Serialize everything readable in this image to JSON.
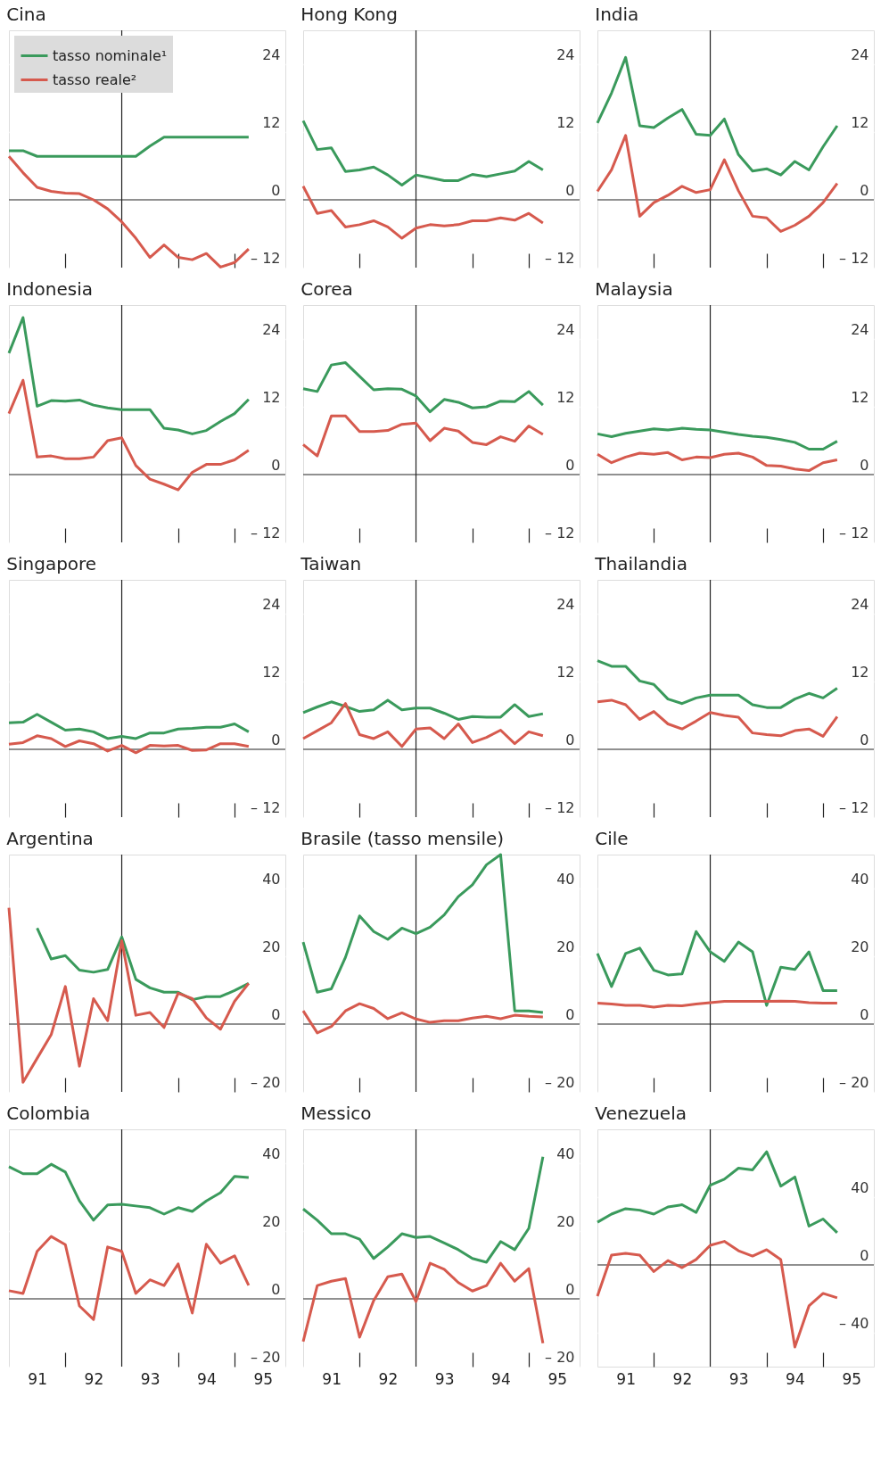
{
  "chart_data": [
    {
      "type": "line",
      "title": "Cina",
      "legend": "top left",
      "grid": "y",
      "tick_labels": "y",
      "x": [
        90.5,
        90.75,
        91,
        91.25,
        91.5,
        91.75,
        92,
        92.25,
        92.5,
        92.75,
        93,
        93.25,
        93.5,
        93.75,
        94,
        94.25,
        94.5,
        94.75
      ],
      "xlim": [
        90.5,
        95.4
      ],
      "xticks": [
        91,
        92,
        93,
        94,
        95,
        {
          "value": 91.5,
          "label": null
        },
        {
          "value": 93.5,
          "label": null
        },
        {
          "value": 94.5,
          "label": null
        }
      ],
      "ylim": [
        -12,
        30
      ],
      "yticks": [
        {
          "value": -12,
          "label": "– 12"
        },
        0,
        12,
        24
      ],
      "ref_lines": [
        {
          "axis": "x",
          "value": 92.5
        },
        {
          "axis": "y",
          "value": 0
        }
      ],
      "series": [
        {
          "name": "tasso nominale¹",
          "color": "#3a9a5c",
          "values": [
            8.7,
            8.7,
            7.7,
            7.7,
            7.7,
            7.7,
            7.7,
            7.7,
            7.7,
            7.7,
            9.5,
            11.1,
            11.1,
            11.1,
            11.1,
            11.1,
            11.1,
            11.1
          ]
        },
        {
          "name": "tasso reale²",
          "color": "#d65a4e",
          "values": [
            7.7,
            4.8,
            2.2,
            1.5,
            1.2,
            1.1,
            0,
            -1.6,
            -3.9,
            -6.8,
            -10.2,
            -8,
            -10.2,
            -10.6,
            -9.5,
            -11.9,
            -11.1,
            -8.7
          ]
        }
      ]
    },
    {
      "type": "line",
      "title": "Hong Kong",
      "grid": "y",
      "tick_labels": "y",
      "x": [
        90.5,
        90.75,
        91,
        91.25,
        91.5,
        91.75,
        92,
        92.25,
        92.5,
        92.75,
        93,
        93.25,
        93.5,
        93.75,
        94,
        94.25,
        94.5,
        94.75
      ],
      "xlim": [
        90.5,
        95.4
      ],
      "xticks": [
        91,
        92,
        93,
        94,
        95,
        {
          "value": 91.5,
          "label": null
        },
        {
          "value": 93.5,
          "label": null
        },
        {
          "value": 94.5,
          "label": null
        }
      ],
      "ylim": [
        -12,
        30
      ],
      "yticks": [
        {
          "value": -12,
          "label": "– 12"
        },
        0,
        12,
        24
      ],
      "ref_lines": [
        {
          "axis": "x",
          "value": 92.5
        },
        {
          "axis": "y",
          "value": 0
        }
      ],
      "series": [
        {
          "color": "#3a9a5c",
          "values": [
            14,
            8.9,
            9.2,
            5.0,
            5.3,
            5.8,
            4.4,
            2.6,
            4.4,
            3.9,
            3.4,
            3.4,
            4.5,
            4.1,
            4.6,
            5.1,
            6.8,
            5.3
          ]
        },
        {
          "color": "#d65a4e",
          "values": [
            2.4,
            -2.4,
            -1.9,
            -4.8,
            -4.4,
            -3.7,
            -4.8,
            -6.8,
            -5.0,
            -4.4,
            -4.6,
            -4.4,
            -3.7,
            -3.7,
            -3.2,
            -3.6,
            -2.4,
            -4.1
          ]
        }
      ]
    },
    {
      "type": "line",
      "title": "India",
      "grid": "y",
      "tick_labels": "y",
      "x": [
        90.5,
        90.75,
        91,
        91.25,
        91.5,
        91.75,
        92,
        92.25,
        92.5,
        92.75,
        93,
        93.25,
        93.5,
        93.75,
        94,
        94.25,
        94.5,
        94.75
      ],
      "xlim": [
        90.5,
        95.4
      ],
      "xticks": [
        91,
        92,
        93,
        94,
        95,
        {
          "value": 91.5,
          "label": null
        },
        {
          "value": 93.5,
          "label": null
        },
        {
          "value": 94.5,
          "label": null
        }
      ],
      "ylim": [
        -12,
        30
      ],
      "yticks": [
        {
          "value": -12,
          "label": "– 12"
        },
        0,
        12,
        24
      ],
      "ref_lines": [
        {
          "axis": "x",
          "value": 92.5
        },
        {
          "axis": "y",
          "value": 0
        }
      ],
      "series": [
        {
          "color": "#3a9a5c",
          "values": [
            13.6,
            18.9,
            25.2,
            13.1,
            12.8,
            14.5,
            16.0,
            11.6,
            11.4,
            14.3,
            8.0,
            5.1,
            5.5,
            4.4,
            6.8,
            5.3,
            9.4,
            13.1
          ]
        },
        {
          "color": "#d65a4e",
          "values": [
            1.5,
            5.3,
            11.4,
            -2.9,
            -0.5,
            0.8,
            2.4,
            1.3,
            1.8,
            7.1,
            1.6,
            -2.9,
            -3.2,
            -5.6,
            -4.5,
            -2.9,
            -0.5,
            2.9
          ]
        }
      ]
    },
    {
      "type": "line",
      "title": "Indonesia",
      "grid": "y",
      "tick_labels": "y",
      "x": [
        90.5,
        90.75,
        91,
        91.25,
        91.5,
        91.75,
        92,
        92.25,
        92.5,
        92.75,
        93,
        93.25,
        93.5,
        93.75,
        94,
        94.25,
        94.5,
        94.75
      ],
      "xlim": [
        90.5,
        95.4
      ],
      "xticks": [
        91,
        92,
        93,
        94,
        95,
        {
          "value": 91.5,
          "label": null
        },
        {
          "value": 93.5,
          "label": null
        },
        {
          "value": 94.5,
          "label": null
        }
      ],
      "ylim": [
        -12,
        30
      ],
      "yticks": [
        {
          "value": -12,
          "label": "– 12"
        },
        0,
        12,
        24
      ],
      "ref_lines": [
        {
          "axis": "x",
          "value": 92.5
        },
        {
          "axis": "y",
          "value": 0
        }
      ],
      "series": [
        {
          "color": "#3a9a5c",
          "values": [
            21.5,
            27.8,
            12.1,
            13.1,
            13.0,
            13.2,
            12.3,
            11.8,
            11.5,
            11.5,
            11.5,
            8.2,
            7.9,
            7.2,
            7.8,
            9.4,
            10.8,
            13.3
          ]
        },
        {
          "color": "#d65a4e",
          "values": [
            10.8,
            16.7,
            3.1,
            3.3,
            2.8,
            2.8,
            3.1,
            6.0,
            6.5,
            1.6,
            -0.8,
            -1.7,
            -2.7,
            0.4,
            1.8,
            1.8,
            2.6,
            4.3
          ]
        }
      ]
    },
    {
      "type": "line",
      "title": "Corea",
      "grid": "y",
      "tick_labels": "y",
      "x": [
        90.5,
        90.75,
        91,
        91.25,
        91.5,
        91.75,
        92,
        92.25,
        92.5,
        92.75,
        93,
        93.25,
        93.5,
        93.75,
        94,
        94.25,
        94.5,
        94.75
      ],
      "xlim": [
        90.5,
        95.4
      ],
      "xticks": [
        91,
        92,
        93,
        94,
        95,
        {
          "value": 91.5,
          "label": null
        },
        {
          "value": 93.5,
          "label": null
        },
        {
          "value": 94.5,
          "label": null
        }
      ],
      "ylim": [
        -12,
        30
      ],
      "yticks": [
        {
          "value": -12,
          "label": "– 12"
        },
        0,
        12,
        24
      ],
      "ref_lines": [
        {
          "axis": "x",
          "value": 92.5
        },
        {
          "axis": "y",
          "value": 0
        }
      ],
      "series": [
        {
          "color": "#3a9a5c",
          "values": [
            15.2,
            14.7,
            19.4,
            19.8,
            17.4,
            15.0,
            15.2,
            15.1,
            13.9,
            11.1,
            13.3,
            12.8,
            11.8,
            12.0,
            13.0,
            12.9,
            14.7,
            12.3
          ]
        },
        {
          "color": "#d65a4e",
          "values": [
            5.3,
            3.3,
            10.4,
            10.4,
            7.6,
            7.6,
            7.8,
            8.9,
            9.1,
            6.0,
            8.2,
            7.7,
            5.7,
            5.3,
            6.7,
            5.9,
            8.6,
            7.1
          ]
        }
      ]
    },
    {
      "type": "line",
      "title": "Malaysia",
      "grid": "y",
      "tick_labels": "y",
      "x": [
        90.5,
        90.75,
        91,
        91.25,
        91.5,
        91.75,
        92,
        92.25,
        92.5,
        92.75,
        93,
        93.25,
        93.5,
        93.75,
        94,
        94.25,
        94.5,
        94.75
      ],
      "xlim": [
        90.5,
        95.4
      ],
      "xticks": [
        91,
        92,
        93,
        94,
        95,
        {
          "value": 91.5,
          "label": null
        },
        {
          "value": 93.5,
          "label": null
        },
        {
          "value": 94.5,
          "label": null
        }
      ],
      "ylim": [
        -12,
        30
      ],
      "yticks": [
        {
          "value": -12,
          "label": "– 12"
        },
        0,
        12,
        24
      ],
      "ref_lines": [
        {
          "axis": "x",
          "value": 92.5
        },
        {
          "axis": "y",
          "value": 0
        }
      ],
      "series": [
        {
          "color": "#3a9a5c",
          "values": [
            7.2,
            6.7,
            7.3,
            7.7,
            8.1,
            7.9,
            8.2,
            8.0,
            7.9,
            7.5,
            7.1,
            6.8,
            6.6,
            6.2,
            5.7,
            4.5,
            4.5,
            5.9
          ]
        },
        {
          "color": "#d65a4e",
          "values": [
            3.6,
            2.1,
            3.1,
            3.8,
            3.6,
            3.9,
            2.6,
            3.1,
            3.0,
            3.6,
            3.8,
            3.1,
            1.6,
            1.5,
            1.0,
            0.7,
            2.1,
            2.6
          ]
        }
      ]
    },
    {
      "type": "line",
      "title": "Singapore",
      "grid": "y",
      "tick_labels": "y",
      "x": [
        90.5,
        90.75,
        91,
        91.25,
        91.5,
        91.75,
        92,
        92.25,
        92.5,
        92.75,
        93,
        93.25,
        93.5,
        93.75,
        94,
        94.25,
        94.5,
        94.75
      ],
      "xlim": [
        90.5,
        95.4
      ],
      "xticks": [
        91,
        92,
        93,
        94,
        95,
        {
          "value": 91.5,
          "label": null
        },
        {
          "value": 93.5,
          "label": null
        },
        {
          "value": 94.5,
          "label": null
        }
      ],
      "ylim": [
        -12,
        30
      ],
      "yticks": [
        {
          "value": -12,
          "label": "– 12"
        },
        0,
        12,
        24
      ],
      "ref_lines": [
        {
          "axis": "x",
          "value": 92.5
        },
        {
          "axis": "y",
          "value": 0
        }
      ],
      "series": [
        {
          "color": "#3a9a5c",
          "values": [
            4.7,
            4.8,
            6.2,
            4.8,
            3.4,
            3.6,
            3.1,
            1.9,
            2.3,
            1.9,
            2.9,
            2.9,
            3.6,
            3.7,
            3.9,
            3.9,
            4.5,
            3.1
          ]
        },
        {
          "color": "#d65a4e",
          "values": [
            0.9,
            1.2,
            2.4,
            1.9,
            0.5,
            1.5,
            1.0,
            -0.3,
            0.7,
            -0.6,
            0.7,
            0.6,
            0.7,
            -0.2,
            -0.1,
            1.0,
            1.0,
            0.5
          ]
        }
      ]
    },
    {
      "type": "line",
      "title": "Taiwan",
      "grid": "y",
      "tick_labels": "y",
      "x": [
        90.5,
        90.75,
        91,
        91.25,
        91.5,
        91.75,
        92,
        92.25,
        92.5,
        92.75,
        93,
        93.25,
        93.5,
        93.75,
        94,
        94.25,
        94.5,
        94.75
      ],
      "xlim": [
        90.5,
        95.4
      ],
      "xticks": [
        91,
        92,
        93,
        94,
        95,
        {
          "value": 91.5,
          "label": null
        },
        {
          "value": 93.5,
          "label": null
        },
        {
          "value": 94.5,
          "label": null
        }
      ],
      "ylim": [
        -12,
        30
      ],
      "yticks": [
        {
          "value": -12,
          "label": "– 12"
        },
        0,
        12,
        24
      ],
      "ref_lines": [
        {
          "axis": "x",
          "value": 92.5
        },
        {
          "axis": "y",
          "value": 0
        }
      ],
      "series": [
        {
          "color": "#3a9a5c",
          "values": [
            6.5,
            7.5,
            8.4,
            7.6,
            6.7,
            7.0,
            8.7,
            7.0,
            7.3,
            7.3,
            6.4,
            5.3,
            5.8,
            5.7,
            5.7,
            7.9,
            5.8,
            6.3
          ]
        },
        {
          "color": "#d65a4e",
          "values": [
            1.9,
            3.3,
            4.7,
            8.1,
            2.6,
            1.9,
            3.1,
            0.5,
            3.6,
            3.8,
            1.9,
            4.5,
            1.2,
            2.1,
            3.4,
            1.0,
            3.1,
            2.4
          ]
        }
      ]
    },
    {
      "type": "line",
      "title": "Thailandia",
      "grid": "y",
      "tick_labels": "y",
      "x": [
        90.5,
        90.75,
        91,
        91.25,
        91.5,
        91.75,
        92,
        92.25,
        92.5,
        92.75,
        93,
        93.25,
        93.5,
        93.75,
        94,
        94.25,
        94.5,
        94.75
      ],
      "xlim": [
        90.5,
        95.4
      ],
      "xticks": [
        91,
        92,
        93,
        94,
        95,
        {
          "value": 91.5,
          "label": null
        },
        {
          "value": 93.5,
          "label": null
        },
        {
          "value": 94.5,
          "label": null
        }
      ],
      "ylim": [
        -12,
        30
      ],
      "yticks": [
        {
          "value": -12,
          "label": "– 12"
        },
        0,
        12,
        24
      ],
      "ref_lines": [
        {
          "axis": "x",
          "value": 92.5
        },
        {
          "axis": "y",
          "value": 0
        }
      ],
      "series": [
        {
          "color": "#3a9a5c",
          "values": [
            15.7,
            14.7,
            14.7,
            12.1,
            11.5,
            8.9,
            8.1,
            9.1,
            9.6,
            9.6,
            9.6,
            7.9,
            7.4,
            7.4,
            8.9,
            9.9,
            9.1,
            10.8
          ]
        },
        {
          "color": "#d65a4e",
          "values": [
            8.4,
            8.7,
            7.9,
            5.3,
            6.7,
            4.5,
            3.6,
            5.0,
            6.5,
            6.0,
            5.7,
            2.9,
            2.6,
            2.4,
            3.3,
            3.6,
            2.3,
            5.8
          ]
        }
      ]
    },
    {
      "type": "line",
      "title": "Argentina",
      "grid": "y",
      "tick_labels": "y",
      "x": [
        90.5,
        90.75,
        91,
        91.25,
        91.5,
        91.75,
        92,
        92.25,
        92.5,
        92.75,
        93,
        93.25,
        93.5,
        93.75,
        94,
        94.25,
        94.5,
        94.75
      ],
      "xlim": [
        90.5,
        95.4
      ],
      "xticks": [
        91,
        92,
        93,
        94,
        95,
        {
          "value": 91.5,
          "label": null
        },
        {
          "value": 93.5,
          "label": null
        },
        {
          "value": 94.5,
          "label": null
        }
      ],
      "ylim": [
        -20,
        50
      ],
      "yticks": [
        {
          "value": -20,
          "label": "– 20"
        },
        0,
        20,
        40
      ],
      "ref_lines": [
        {
          "axis": "x",
          "value": 92.5
        },
        {
          "axis": "y",
          "value": 0
        }
      ],
      "series": [
        {
          "color": "#3a9a5c",
          "values": [
            null,
            null,
            28.3,
            19.2,
            20.2,
            15.9,
            15.3,
            16.1,
            25.7,
            13.2,
            10.7,
            9.4,
            9.4,
            7.2,
            8.1,
            8.1,
            9.9,
            12.0
          ]
        },
        {
          "color": "#d65a4e",
          "values": [
            34.3,
            -17.2,
            -10.1,
            -3.1,
            11.1,
            -12.4,
            7.5,
            1.0,
            24.6,
            2.6,
            3.4,
            -1.0,
            9.1,
            7.5,
            1.8,
            -1.5,
            6.7,
            12.0
          ]
        }
      ]
    },
    {
      "type": "line",
      "title": "Brasile (tasso mensile)",
      "grid": "y",
      "tick_labels": "y",
      "x": [
        90.5,
        90.75,
        91,
        91.25,
        91.5,
        91.75,
        92,
        92.25,
        92.5,
        92.75,
        93,
        93.25,
        93.5,
        93.75,
        94,
        94.25,
        94.5,
        94.75
      ],
      "xlim": [
        90.5,
        95.4
      ],
      "xticks": [
        91,
        92,
        93,
        94,
        95,
        {
          "value": 91.5,
          "label": null
        },
        {
          "value": 93.5,
          "label": null
        },
        {
          "value": 94.5,
          "label": null
        }
      ],
      "ylim": [
        -20,
        50
      ],
      "yticks": [
        {
          "value": -20,
          "label": "– 20"
        },
        0,
        20,
        40
      ],
      "ref_lines": [
        {
          "axis": "x",
          "value": 92.5
        },
        {
          "axis": "y",
          "value": 0
        }
      ],
      "series": [
        {
          "color": "#3a9a5c",
          "values": [
            24.2,
            9.4,
            10.4,
            19.7,
            31.9,
            27.3,
            25.0,
            28.3,
            26.7,
            28.6,
            32.2,
            37.6,
            41.1,
            47.0,
            50,
            3.9,
            3.9,
            3.4
          ]
        },
        {
          "color": "#d65a4e",
          "values": [
            3.9,
            -2.6,
            -0.7,
            3.9,
            6.0,
            4.6,
            1.6,
            3.3,
            1.5,
            0.5,
            1.0,
            1.0,
            1.8,
            2.3,
            1.6,
            2.6,
            2.3,
            2.1
          ]
        }
      ]
    },
    {
      "type": "line",
      "title": "Cile",
      "grid": "y",
      "tick_labels": "y",
      "x": [
        90.5,
        90.75,
        91,
        91.25,
        91.5,
        91.75,
        92,
        92.25,
        92.5,
        92.75,
        93,
        93.25,
        93.5,
        93.75,
        94,
        94.25,
        94.5,
        94.75
      ],
      "xlim": [
        90.5,
        95.4
      ],
      "xticks": [
        91,
        92,
        93,
        94,
        95,
        {
          "value": 91.5,
          "label": null
        },
        {
          "value": 93.5,
          "label": null
        },
        {
          "value": 94.5,
          "label": null
        }
      ],
      "ylim": [
        -20,
        50
      ],
      "yticks": [
        {
          "value": -20,
          "label": "– 20"
        },
        0,
        20,
        40
      ],
      "ref_lines": [
        {
          "axis": "x",
          "value": 92.5
        },
        {
          "axis": "y",
          "value": 0
        }
      ],
      "series": [
        {
          "color": "#3a9a5c",
          "values": [
            20.8,
            11.1,
            20.8,
            22.4,
            15.9,
            14.5,
            14.8,
            27.3,
            21.3,
            18.5,
            24.2,
            21.3,
            5.5,
            16.8,
            16.1,
            21.3,
            9.9,
            9.9
          ]
        },
        {
          "color": "#d65a4e",
          "values": [
            6.2,
            5.9,
            5.5,
            5.5,
            5.0,
            5.5,
            5.4,
            5.9,
            6.3,
            6.7,
            6.7,
            6.7,
            6.7,
            6.8,
            6.7,
            6.3,
            6.2,
            6.2
          ]
        }
      ]
    },
    {
      "type": "line",
      "title": "Colombia",
      "grid": "y",
      "x": [
        90.5,
        90.75,
        91,
        91.25,
        91.5,
        91.75,
        92,
        92.25,
        92.5,
        92.75,
        93,
        93.25,
        93.5,
        93.75,
        94,
        94.25,
        94.5,
        94.75
      ],
      "xlim": [
        90.5,
        95.4
      ],
      "xticks": [
        91,
        92,
        93,
        94,
        95,
        {
          "value": 91.5,
          "label": null
        },
        {
          "value": 93.5,
          "label": null
        },
        {
          "value": 94.5,
          "label": null
        }
      ],
      "ylim": [
        -20,
        50
      ],
      "yticks": [
        {
          "value": -20,
          "label": "– 20"
        },
        0,
        20,
        40
      ],
      "ref_lines": [
        {
          "axis": "x",
          "value": 92.5
        },
        {
          "axis": "y",
          "value": 0
        }
      ],
      "series": [
        {
          "color": "#3a9a5c",
          "values": [
            39.0,
            36.9,
            36.9,
            39.7,
            37.4,
            28.9,
            23.2,
            27.7,
            27.9,
            27.4,
            26.9,
            25.0,
            26.9,
            25.8,
            28.9,
            31.3,
            36.1,
            35.8
          ]
        },
        {
          "color": "#d65a4e",
          "values": [
            2.4,
            1.6,
            14.0,
            18.4,
            16.0,
            -2.1,
            -6.1,
            15.3,
            14.0,
            1.6,
            5.6,
            3.9,
            10.3,
            -4.2,
            16.1,
            10.5,
            12.7,
            4.0
          ]
        }
      ]
    },
    {
      "type": "line",
      "title": "Messico",
      "grid": "y",
      "x": [
        90.5,
        90.75,
        91,
        91.25,
        91.5,
        91.75,
        92,
        92.25,
        92.5,
        92.75,
        93,
        93.25,
        93.5,
        93.75,
        94,
        94.25,
        94.5,
        94.75
      ],
      "xlim": [
        90.5,
        95.4
      ],
      "xticks": [
        91,
        92,
        93,
        94,
        95,
        {
          "value": 91.5,
          "label": null
        },
        {
          "value": 93.5,
          "label": null
        },
        {
          "value": 94.5,
          "label": null
        }
      ],
      "ylim": [
        -20,
        50
      ],
      "yticks": [
        {
          "value": -20,
          "label": "– 20"
        },
        0,
        20,
        40
      ],
      "ref_lines": [
        {
          "axis": "x",
          "value": 92.5
        },
        {
          "axis": "y",
          "value": 0
        }
      ],
      "series": [
        {
          "color": "#3a9a5c",
          "values": [
            26.5,
            23.2,
            19.2,
            19.2,
            17.6,
            11.9,
            15.3,
            19.2,
            18.1,
            18.4,
            16.5,
            14.5,
            11.9,
            10.8,
            16.9,
            14.5,
            20.8,
            41.9
          ]
        },
        {
          "color": "#d65a4e",
          "values": [
            -12.6,
            3.9,
            5.2,
            6.0,
            -11.3,
            -0.5,
            6.5,
            7.3,
            -0.8,
            10.5,
            8.7,
            4.8,
            2.3,
            3.9,
            10.5,
            5.2,
            8.9,
            -13.1
          ]
        }
      ]
    },
    {
      "type": "line",
      "title": "Venezuela",
      "grid": "y",
      "x": [
        90.5,
        90.75,
        91,
        91.25,
        91.5,
        91.75,
        92,
        92.25,
        92.5,
        92.75,
        93,
        93.25,
        93.5,
        93.75,
        94,
        94.25,
        94.5,
        94.75
      ],
      "xlim": [
        90.5,
        95.4
      ],
      "xticks": [
        91,
        92,
        93,
        94,
        95,
        {
          "value": 91.5,
          "label": null
        },
        {
          "value": 93.5,
          "label": null
        },
        {
          "value": 94.5,
          "label": null
        }
      ],
      "ylim": [
        -60,
        80
      ],
      "yticks": [
        {
          "value": -40,
          "label": "– 40"
        },
        0,
        40
      ],
      "ref_lines": [
        {
          "axis": "x",
          "value": 92.5
        },
        {
          "axis": "y",
          "value": 0
        }
      ],
      "series": [
        {
          "color": "#3a9a5c",
          "values": [
            25.2,
            30.0,
            33.2,
            32.3,
            30.0,
            34.2,
            35.5,
            31.0,
            47.1,
            50.6,
            57.1,
            56.1,
            66.8,
            46.5,
            51.9,
            22.9,
            27.1,
            19.0
          ]
        },
        {
          "color": "#d65a4e",
          "values": [
            -18.4,
            5.8,
            6.8,
            5.8,
            -3.9,
            2.6,
            -1.6,
            3.2,
            11.6,
            13.9,
            8.4,
            5.2,
            9.0,
            3.2,
            -48.4,
            -24.2,
            -16.8,
            -19.4
          ]
        }
      ]
    }
  ]
}
